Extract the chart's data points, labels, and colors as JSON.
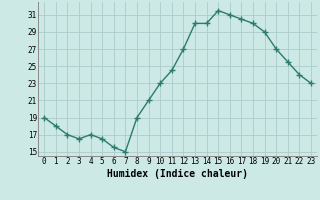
{
  "x": [
    0,
    1,
    2,
    3,
    4,
    5,
    6,
    7,
    8,
    9,
    10,
    11,
    12,
    13,
    14,
    15,
    16,
    17,
    18,
    19,
    20,
    21,
    22,
    23
  ],
  "y": [
    19,
    18,
    17,
    16.5,
    17,
    16.5,
    15.5,
    15,
    19,
    21,
    23,
    24.5,
    27,
    30,
    30,
    31.5,
    31,
    30.5,
    30,
    29,
    27,
    25.5,
    24,
    23
  ],
  "line_color": "#2d7a6e",
  "marker": "+",
  "marker_color": "#2d7a6e",
  "marker_size": 4,
  "linewidth": 1.0,
  "xlabel": "Humidex (Indice chaleur)",
  "xlim": [
    -0.5,
    23.5
  ],
  "ylim": [
    14.5,
    32.5
  ],
  "yticks": [
    15,
    17,
    19,
    21,
    23,
    25,
    27,
    29,
    31
  ],
  "xtick_labels": [
    "0",
    "1",
    "2",
    "3",
    "4",
    "5",
    "6",
    "7",
    "8",
    "9",
    "10",
    "11",
    "12",
    "13",
    "14",
    "15",
    "16",
    "17",
    "18",
    "19",
    "20",
    "21",
    "22",
    "23"
  ],
  "bg_color": "#cce9e5",
  "grid_color": "#aaccca",
  "tick_fontsize": 5.5,
  "xlabel_fontsize": 7.0
}
